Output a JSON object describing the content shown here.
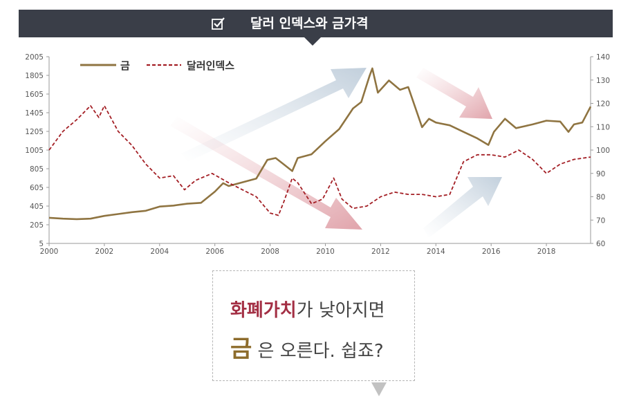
{
  "header": {
    "title": "달러 인덱스와 금가격",
    "icon": "checkbox-icon"
  },
  "chart_data": {
    "type": "line",
    "title": "",
    "x_ticks": [
      2000,
      2002,
      2004,
      2006,
      2008,
      2010,
      2012,
      2014,
      2016,
      2018
    ],
    "x_tick_labels": [
      "2000",
      "2002",
      "2004",
      "2006",
      "2008",
      "2010",
      "2012",
      "2014",
      "2016",
      "2018"
    ],
    "xlim": [
      2000,
      2019.6
    ],
    "y_left_ticks": [
      "5",
      "205",
      "405",
      "605",
      "805",
      "1005",
      "1205",
      "1405",
      "1605",
      "1805",
      "2005"
    ],
    "y_left_lim": [
      5,
      2005
    ],
    "y_right_ticks": [
      "60",
      "70",
      "80",
      "90",
      "100",
      "110",
      "120",
      "130",
      "140"
    ],
    "y_right_lim": [
      60,
      140
    ],
    "legend": {
      "placement": "top-left",
      "gold_label": "금",
      "dollar_label": "달러인덱스"
    },
    "series": [
      {
        "name": "금",
        "axis": "left",
        "color": "#8f7441",
        "style": "solid",
        "x": [
          2000.0,
          2000.5,
          2001.0,
          2001.5,
          2002.0,
          2002.5,
          2003.0,
          2003.5,
          2004.0,
          2004.5,
          2005.0,
          2005.5,
          2006.0,
          2006.3,
          2006.5,
          2007.0,
          2007.5,
          2007.9,
          2008.2,
          2008.5,
          2008.8,
          2009.0,
          2009.5,
          2010.0,
          2010.5,
          2011.0,
          2011.3,
          2011.6,
          2011.7,
          2011.9,
          2012.3,
          2012.7,
          2013.0,
          2013.5,
          2013.75,
          2014.0,
          2014.5,
          2015.0,
          2015.5,
          2015.9,
          2016.1,
          2016.5,
          2016.9,
          2017.2,
          2017.5,
          2018.0,
          2018.5,
          2018.8,
          2019.0,
          2019.3,
          2019.6
        ],
        "values": [
          280,
          270,
          265,
          270,
          300,
          320,
          340,
          355,
          400,
          410,
          430,
          440,
          560,
          650,
          620,
          660,
          700,
          900,
          920,
          850,
          780,
          920,
          960,
          1100,
          1230,
          1450,
          1520,
          1800,
          1880,
          1620,
          1750,
          1650,
          1680,
          1250,
          1340,
          1300,
          1270,
          1200,
          1130,
          1060,
          1200,
          1340,
          1240,
          1260,
          1280,
          1320,
          1310,
          1200,
          1280,
          1300,
          1470
        ]
      },
      {
        "name": "달러인덱스",
        "axis": "right",
        "color": "#a31e24",
        "style": "dashed",
        "x": [
          2000.0,
          2000.5,
          2001.0,
          2001.5,
          2001.8,
          2002.0,
          2002.5,
          2003.0,
          2003.5,
          2004.0,
          2004.5,
          2004.9,
          2005.3,
          2005.5,
          2005.9,
          2006.5,
          2007.0,
          2007.5,
          2008.0,
          2008.3,
          2008.5,
          2008.8,
          2009.0,
          2009.5,
          2009.9,
          2010.3,
          2010.6,
          2011.0,
          2011.5,
          2012.0,
          2012.5,
          2013.0,
          2013.5,
          2014.0,
          2014.5,
          2015.0,
          2015.5,
          2016.0,
          2016.5,
          2017.0,
          2017.5,
          2018.0,
          2018.5,
          2019.0,
          2019.6
        ],
        "values": [
          100,
          108,
          113,
          119,
          114,
          119,
          108,
          102,
          94,
          88,
          89,
          83,
          87,
          88,
          90,
          86,
          83,
          80,
          73,
          72,
          78,
          88,
          86,
          77,
          79,
          88,
          79,
          75,
          76,
          80,
          82,
          81,
          81,
          80,
          81,
          95,
          98,
          98,
          97,
          100,
          96,
          90,
          94,
          96,
          97
        ]
      }
    ]
  },
  "callout": {
    "line1_accent": "화폐가치",
    "line1_rest": "가 낮아지면",
    "line2_accent": "금",
    "line2_rest": "은 오른다. 쉽죠?"
  }
}
